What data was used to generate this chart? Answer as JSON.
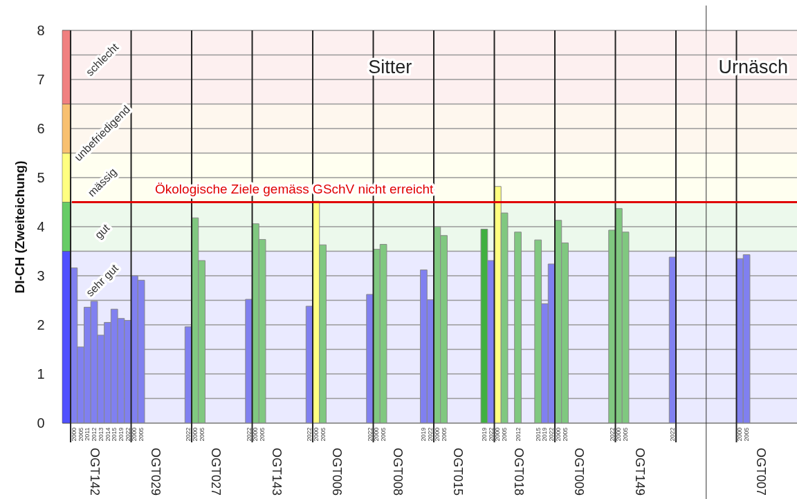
{
  "chart_data": {
    "type": "bar",
    "ylabel": "DI-CH (Zweiteichung)",
    "categories": [
      "2000",
      "2005",
      "2011",
      "2012",
      "2013",
      "2014",
      "2015",
      "2019",
      "2022",
      "2000",
      "2005",
      null,
      null,
      null,
      null,
      null,
      null,
      "2022",
      "2000",
      "2005",
      null,
      null,
      null,
      null,
      null,
      null,
      "2022",
      "2000",
      "2005",
      null,
      null,
      null,
      null,
      null,
      null,
      "2022",
      "2000",
      "2005",
      null,
      null,
      null,
      null,
      null,
      null,
      "2022",
      "2000",
      "2005",
      null,
      null,
      null,
      null,
      null,
      "2019",
      "2022",
      "2000",
      "2005",
      null,
      null,
      null,
      null,
      null,
      "2019",
      "2022",
      "2000",
      "2005",
      null,
      "2012",
      null,
      null,
      "2015",
      "2019",
      "2022",
      "2000",
      "2005",
      null,
      null,
      null,
      null,
      null,
      null,
      "2022",
      "2000",
      "2005",
      null,
      null,
      null,
      null,
      null,
      null,
      "2022",
      null,
      null,
      null,
      null,
      null,
      null,
      null,
      null,
      null,
      "2000",
      "2005",
      null,
      null,
      null,
      null,
      null,
      null,
      null
    ],
    "values": [
      3.16,
      1.55,
      2.36,
      2.48,
      1.79,
      2.05,
      2.32,
      2.13,
      2.09,
      3.0,
      2.91,
      null,
      null,
      null,
      null,
      null,
      null,
      1.96,
      4.18,
      3.31,
      null,
      null,
      null,
      null,
      null,
      null,
      2.52,
      4.06,
      3.74,
      null,
      null,
      null,
      null,
      null,
      null,
      2.38,
      4.52,
      3.63,
      null,
      null,
      null,
      null,
      null,
      null,
      2.62,
      3.54,
      3.64,
      null,
      null,
      null,
      null,
      null,
      3.12,
      2.51,
      4.0,
      3.82,
      null,
      null,
      null,
      null,
      null,
      3.95,
      3.31,
      4.82,
      4.28,
      null,
      3.89,
      null,
      null,
      3.73,
      2.43,
      3.24,
      4.13,
      3.67,
      null,
      null,
      null,
      null,
      null,
      null,
      3.93,
      4.37,
      3.89,
      null,
      null,
      null,
      null,
      null,
      null,
      3.38,
      null,
      null,
      null,
      null,
      null,
      null,
      null,
      null,
      null,
      3.35,
      3.43,
      null,
      null,
      null,
      null,
      null,
      null,
      null
    ],
    "colors": [
      "#8080f0",
      "#8080f0",
      "#8080f0",
      "#8080f0",
      "#8080f0",
      "#8080f0",
      "#8080f0",
      "#8080f0",
      "#8080f0",
      "#8080f0",
      "#8080f0",
      null,
      null,
      null,
      null,
      null,
      null,
      "#8080f0",
      "#80c880",
      "#80c880",
      null,
      null,
      null,
      null,
      null,
      null,
      "#8080f0",
      "#80c880",
      "#80c880",
      null,
      null,
      null,
      null,
      null,
      null,
      "#8080f0",
      "#ffff80",
      "#80c880",
      null,
      null,
      null,
      null,
      null,
      null,
      "#8080f0",
      "#80c880",
      "#80c880",
      null,
      null,
      null,
      null,
      null,
      "#8080f0",
      "#8080f0",
      "#80c880",
      "#80c880",
      null,
      null,
      null,
      null,
      null,
      "#40b040",
      "#8080f0",
      "#ffff80",
      "#80c880",
      null,
      "#80c880",
      null,
      null,
      "#80c880",
      "#8080f0",
      "#8080f0",
      "#80c880",
      "#80c880",
      null,
      null,
      null,
      null,
      null,
      null,
      "#80c880",
      "#80c880",
      "#80c880",
      null,
      null,
      null,
      null,
      null,
      null,
      "#8080f0",
      null,
      null,
      null,
      null,
      null,
      null,
      null,
      null,
      null,
      "#8080f0",
      "#8080f0",
      null,
      null,
      null,
      null,
      null,
      null,
      null
    ],
    "ylim": [
      0,
      8
    ],
    "yticks": [
      0,
      {
        "value": 0.5,
        "label": null
      },
      1,
      {
        "value": 1.5,
        "label": null
      },
      2,
      {
        "value": 2.5,
        "label": null
      },
      3,
      {
        "value": 3.5,
        "label": null
      },
      4,
      {
        "value": 4.5,
        "label": null
      },
      5,
      {
        "value": 5.5,
        "label": null
      },
      6,
      {
        "value": 6.5,
        "label": null
      },
      7,
      {
        "value": 7.5,
        "label": null
      },
      8
    ],
    "grid": "y",
    "ref_lines": [
      {
        "axis": "y",
        "value": 4.5,
        "label": "Ökologische Ziele gemäss GSchV nicht erreicht",
        "color": "#e00000"
      }
    ],
    "bands": [
      {
        "axis": "y",
        "from": 0,
        "to": 3.5,
        "label": "sehr gut",
        "color": "#5050ff"
      },
      {
        "axis": "y",
        "from": 3.5,
        "to": 4.5,
        "label": "gut",
        "color": "#66cc66"
      },
      {
        "axis": "y",
        "from": 4.5,
        "to": 5.5,
        "label": "mässig",
        "color": "#ffff80"
      },
      {
        "axis": "y",
        "from": 5.5,
        "to": 6.5,
        "label": "unbefriedigend",
        "color": "#f8c070"
      },
      {
        "axis": "y",
        "from": 6.5,
        "to": 8,
        "label": "schlecht",
        "color": "#f08080"
      }
    ],
    "annotations": [
      "OGT142",
      "OGT029",
      "OGT027",
      "OGT143",
      "OGT006",
      "OGT008",
      "OGT015",
      "OGT018",
      "OGT009",
      "OGT149",
      "OGT007",
      "Sitter",
      "Urnäsch"
    ]
  }
}
